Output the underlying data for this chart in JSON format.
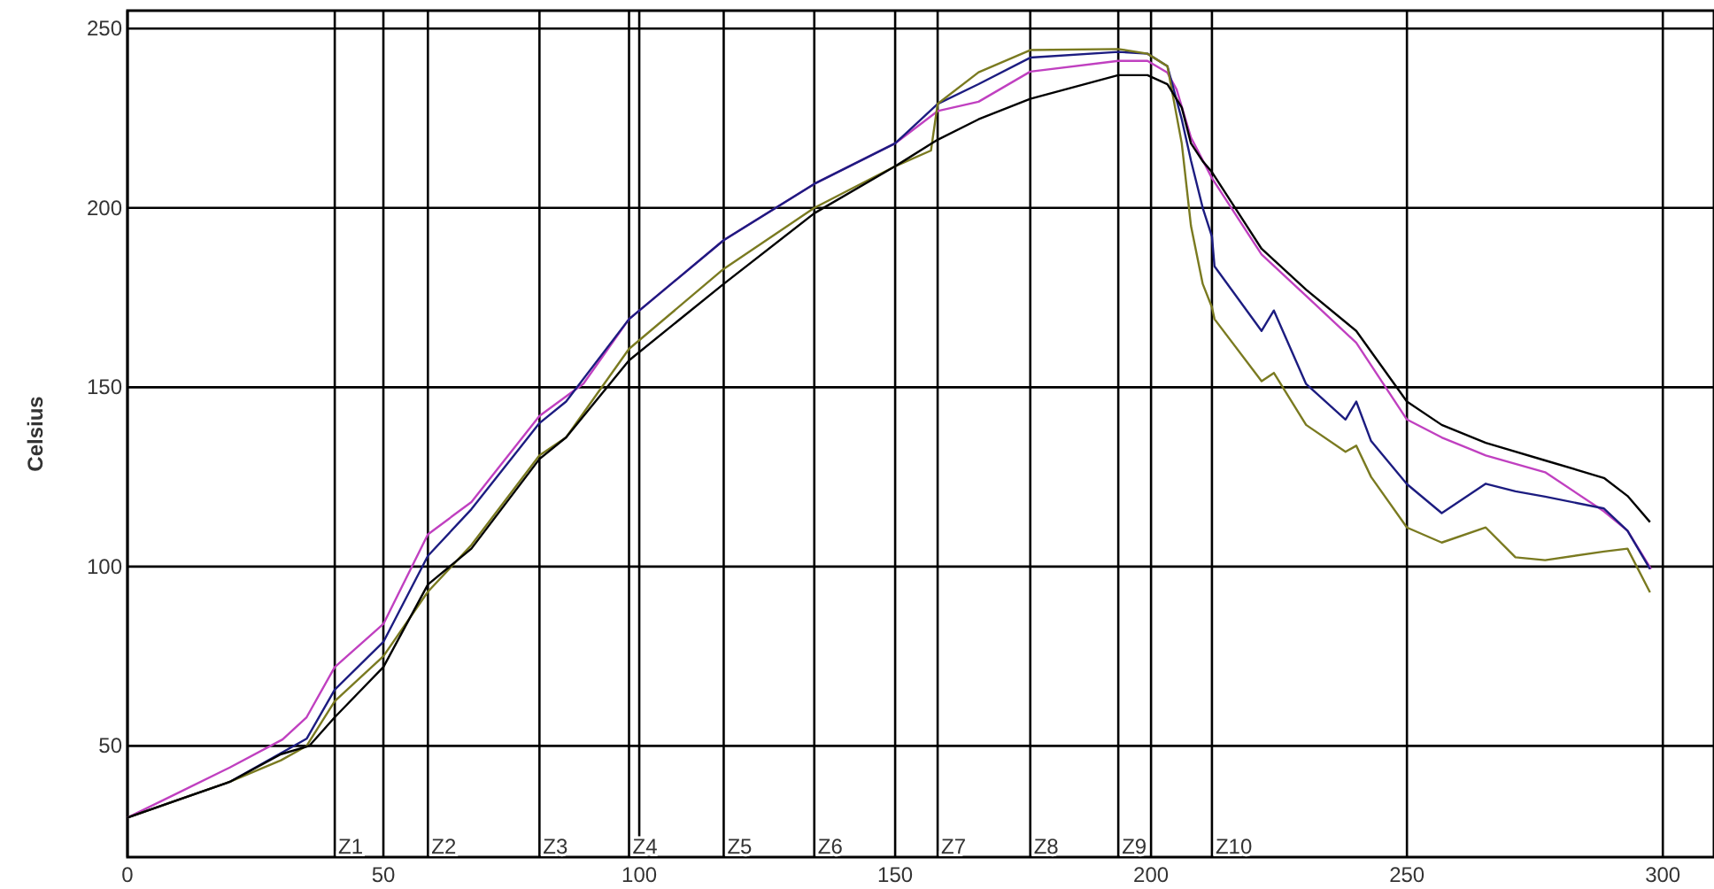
{
  "chart_data": {
    "type": "line",
    "ylabel": "Celsius",
    "xlim": [
      0,
      310
    ],
    "ylim": [
      19,
      255
    ],
    "xticks": [
      0,
      50,
      100,
      150,
      200,
      250,
      300
    ],
    "yticks": [
      50,
      100,
      150,
      200,
      250
    ],
    "grid": true,
    "line_style": "solid",
    "ref_lines": [
      {
        "axis": "x",
        "value": 40.5,
        "label": "Z1"
      },
      {
        "axis": "x",
        "value": 58.7,
        "label": "Z2"
      },
      {
        "axis": "x",
        "value": 80.5,
        "label": "Z3"
      },
      {
        "axis": "x",
        "value": 98,
        "label": "Z4"
      },
      {
        "axis": "x",
        "value": 116.5,
        "label": "Z5"
      },
      {
        "axis": "x",
        "value": 134.2,
        "label": "Z6"
      },
      {
        "axis": "x",
        "value": 158.3,
        "label": "Z7"
      },
      {
        "axis": "x",
        "value": 176.4,
        "label": "Z8"
      },
      {
        "axis": "x",
        "value": 193.6,
        "label": "Z9"
      },
      {
        "axis": "x",
        "value": 211.9,
        "label": "Z10"
      }
    ],
    "series": [
      {
        "color": "#c040c0",
        "x": [
          0,
          10,
          20,
          30.3,
          35,
          40.5,
          50,
          58.7,
          67.2,
          80.5,
          89.1,
          98,
          116.5,
          134.2,
          150,
          158.3,
          166.3,
          176.4,
          193.6,
          199.3,
          203.2,
          205,
          207.8,
          211.9,
          221.6,
          230.3,
          240.1,
          250,
          256.8,
          265.4,
          277,
          288.5,
          293.1,
          297.7
        ],
        "values": [
          30,
          37,
          44,
          51.8,
          58,
          72,
          84,
          109,
          118,
          142,
          151,
          169,
          191,
          206.7,
          218,
          227,
          229.6,
          238,
          241,
          241,
          237.7,
          233,
          219.6,
          208.3,
          187,
          175.5,
          162.4,
          141,
          136,
          131,
          126.3,
          115.4,
          110,
          99.3
        ]
      },
      {
        "color": "#1c1c80",
        "x": [
          0,
          10,
          20,
          30,
          35,
          40.5,
          50,
          58.7,
          67.2,
          80.5,
          85.7,
          98,
          116.5,
          134.2,
          150,
          158.3,
          166.3,
          176.4,
          193.6,
          199.3,
          203.2,
          206,
          207.8,
          210.1,
          211.9,
          212.4,
          221.6,
          224,
          230.3,
          238,
          240.1,
          243,
          250,
          256.8,
          265.4,
          271.2,
          277,
          288.5,
          293.1,
          297.5
        ],
        "values": [
          30,
          35,
          40,
          48,
          52,
          65.7,
          79,
          103,
          116,
          140,
          146,
          169,
          191,
          206.7,
          218,
          229,
          234.5,
          241.9,
          243.5,
          243,
          239.5,
          224.7,
          213.2,
          200,
          192,
          183.7,
          165.7,
          171.4,
          150.9,
          141,
          146,
          135,
          123,
          114.9,
          123.1,
          121,
          119.5,
          116.2,
          110,
          99.3
        ]
      },
      {
        "color": "#7a7a20",
        "x": [
          0,
          10,
          20,
          30,
          35,
          40.5,
          50,
          58.7,
          67.2,
          80.5,
          85.7,
          98,
          116.5,
          134.2,
          150,
          157,
          158.3,
          166.3,
          176.4,
          193.6,
          199.3,
          203.2,
          206,
          207.8,
          210.1,
          211.9,
          212.4,
          221.6,
          224,
          230.3,
          238,
          240.1,
          243,
          250,
          256.8,
          265.4,
          271.2,
          277,
          288.5,
          293.1,
          297.5
        ],
        "values": [
          30,
          35,
          40,
          46,
          50,
          62.5,
          75,
          93,
          106,
          131,
          136,
          160.7,
          183,
          200,
          211.6,
          216,
          229,
          237.8,
          244,
          244.3,
          243,
          239.5,
          218,
          195,
          178.8,
          172.3,
          169,
          151.7,
          154,
          139.5,
          132,
          133.7,
          125,
          110.9,
          106.7,
          110.9,
          102.6,
          101.8,
          104.2,
          105,
          92.8
        ]
      },
      {
        "color": "#000000",
        "x": [
          0,
          10,
          20,
          30,
          35.5,
          40.5,
          50,
          58.7,
          67.2,
          80.5,
          85.7,
          98,
          116.5,
          134.2,
          150,
          158.3,
          166.3,
          176.4,
          193.6,
          199.3,
          203.2,
          206,
          207.8,
          210.1,
          211.9,
          221.6,
          230.3,
          240.1,
          250,
          256.8,
          265.4,
          277,
          288.5,
          293.1,
          297.5
        ],
        "values": [
          30,
          35,
          40,
          47.7,
          50,
          58,
          72,
          95,
          105,
          130,
          136,
          157.5,
          178.8,
          198.5,
          211.6,
          219,
          224.7,
          230.4,
          237,
          237,
          234.5,
          228,
          218,
          213,
          210,
          188.6,
          177.2,
          165.7,
          146,
          139.5,
          134.5,
          129.6,
          124.7,
          119.7,
          112.4
        ]
      }
    ]
  }
}
